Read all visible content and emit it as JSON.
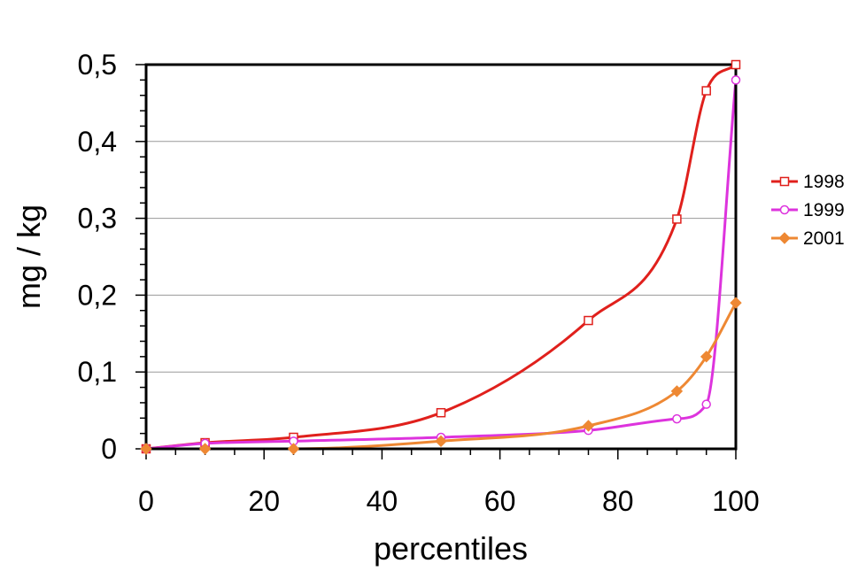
{
  "chart_data": {
    "type": "line",
    "title": "",
    "xlabel": "percentiles",
    "ylabel": "mg / kg",
    "xlim": [
      0,
      100
    ],
    "ylim": [
      0,
      0.5
    ],
    "x_ticks": [
      0,
      20,
      40,
      60,
      80,
      100
    ],
    "x_tick_labels": [
      "0",
      "20",
      "40",
      "60",
      "80",
      "100"
    ],
    "y_ticks": [
      0,
      0.1,
      0.2,
      0.3,
      0.4,
      0.5
    ],
    "y_tick_labels": [
      "0",
      "0,1",
      "0,2",
      "0,3",
      "0,4",
      "0,5"
    ],
    "grid": "horizontal",
    "legend_position": "right",
    "x": [
      0,
      10,
      25,
      50,
      75,
      90,
      95,
      100
    ],
    "series": [
      {
        "name": "1998",
        "color": "#e0201c",
        "marker": "square-open",
        "values": [
          0,
          0.008,
          0.015,
          0.047,
          0.167,
          0.299,
          0.466,
          0.5
        ]
      },
      {
        "name": "1999",
        "color": "#dd33dd",
        "marker": "circle-open",
        "values": [
          0,
          0.007,
          0.01,
          0.015,
          0.024,
          0.039,
          0.058,
          0.48
        ]
      },
      {
        "name": "2001",
        "color": "#ee8833",
        "marker": "diamond-filled",
        "values": [
          0,
          0.0,
          0.0,
          0.01,
          0.03,
          0.075,
          0.12,
          0.19
        ]
      }
    ]
  }
}
